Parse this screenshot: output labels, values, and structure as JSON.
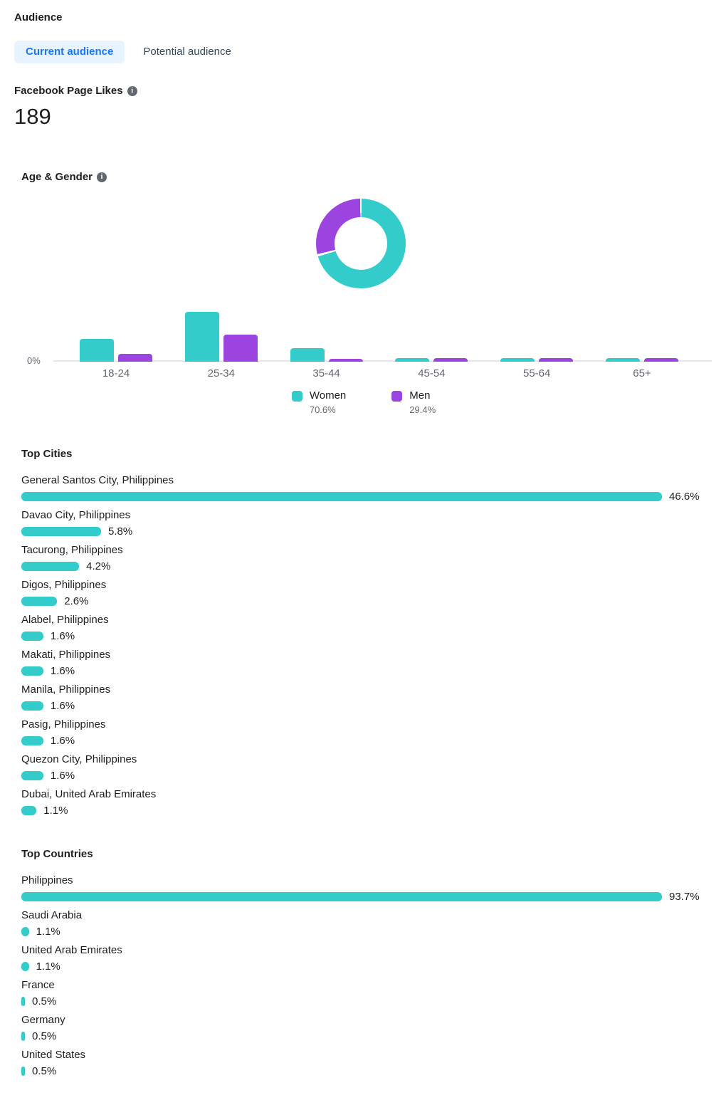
{
  "header": {
    "title": "Audience"
  },
  "tabs": [
    {
      "label": "Current audience",
      "active": true
    },
    {
      "label": "Potential audience",
      "active": false
    }
  ],
  "metric": {
    "label": "Facebook Page Likes",
    "value": "189",
    "info_icon": "info-icon"
  },
  "colors": {
    "women_teal": "#33cccb",
    "men_purple": "#9b44df",
    "tab_active_text": "#1877f2",
    "tab_active_bg": "#e7f3ff",
    "axis_line": "#e4e6eb",
    "text_primary": "#1c1e21",
    "text_secondary": "#606770"
  },
  "age_gender": {
    "title": "Age & Gender",
    "axis_zero_label": "0%",
    "legend": {
      "women": {
        "label": "Women",
        "pct": "70.6%"
      },
      "men": {
        "label": "Men",
        "pct": "29.4%"
      }
    }
  },
  "top_cities": {
    "title": "Top Cities",
    "items": [
      {
        "label": "General Santos City, Philippines",
        "value": 46.6,
        "pct": "46.6%"
      },
      {
        "label": "Davao City, Philippines",
        "value": 5.8,
        "pct": "5.8%"
      },
      {
        "label": "Tacurong, Philippines",
        "value": 4.2,
        "pct": "4.2%"
      },
      {
        "label": "Digos, Philippines",
        "value": 2.6,
        "pct": "2.6%"
      },
      {
        "label": "Alabel, Philippines",
        "value": 1.6,
        "pct": "1.6%"
      },
      {
        "label": "Makati, Philippines",
        "value": 1.6,
        "pct": "1.6%"
      },
      {
        "label": "Manila, Philippines",
        "value": 1.6,
        "pct": "1.6%"
      },
      {
        "label": "Pasig, Philippines",
        "value": 1.6,
        "pct": "1.6%"
      },
      {
        "label": "Quezon City, Philippines",
        "value": 1.6,
        "pct": "1.6%"
      },
      {
        "label": "Dubai, United Arab Emirates",
        "value": 1.1,
        "pct": "1.1%"
      }
    ]
  },
  "top_countries": {
    "title": "Top Countries",
    "items": [
      {
        "label": "Philippines",
        "value": 93.7,
        "pct": "93.7%"
      },
      {
        "label": "Saudi Arabia",
        "value": 1.1,
        "pct": "1.1%"
      },
      {
        "label": "United Arab Emirates",
        "value": 1.1,
        "pct": "1.1%"
      },
      {
        "label": "France",
        "value": 0.5,
        "pct": "0.5%"
      },
      {
        "label": "Germany",
        "value": 0.5,
        "pct": "0.5%"
      },
      {
        "label": "United States",
        "value": 0.5,
        "pct": "0.5%"
      }
    ]
  },
  "chart_data": [
    {
      "type": "pie",
      "subtype": "donut",
      "title": "Age & Gender — gender split",
      "labels": [
        "Women",
        "Men"
      ],
      "values": [
        70.6,
        29.4
      ],
      "colors": [
        "#33cccb",
        "#9b44df"
      ],
      "legend_position": "bottom"
    },
    {
      "type": "bar",
      "title": "Age & Gender — by age group",
      "categories": [
        "18-24",
        "25-34",
        "35-44",
        "45-54",
        "55-64",
        "65+"
      ],
      "series": [
        {
          "name": "Women",
          "color": "#33cccb",
          "values": [
            17,
            37,
            10,
            2.5,
            2.5,
            2.5
          ]
        },
        {
          "name": "Men",
          "color": "#9b44df",
          "values": [
            6,
            20,
            2,
            2.5,
            2.5,
            2.5
          ]
        }
      ],
      "values_are_estimates": true,
      "xlabel": "",
      "ylabel": "%",
      "ylim": [
        0,
        40
      ],
      "axis_labels_shown": [
        "0%"
      ],
      "grid": false
    },
    {
      "type": "bar",
      "orientation": "horizontal",
      "title": "Top Cities",
      "categories": [
        "General Santos City, Philippines",
        "Davao City, Philippines",
        "Tacurong, Philippines",
        "Digos, Philippines",
        "Alabel, Philippines",
        "Makati, Philippines",
        "Manila, Philippines",
        "Pasig, Philippines",
        "Quezon City, Philippines",
        "Dubai, United Arab Emirates"
      ],
      "values": [
        46.6,
        5.8,
        4.2,
        2.6,
        1.6,
        1.6,
        1.6,
        1.6,
        1.6,
        1.1
      ],
      "data_labels": [
        "46.6%",
        "5.8%",
        "4.2%",
        "2.6%",
        "1.6%",
        "1.6%",
        "1.6%",
        "1.6%",
        "1.6%",
        "1.1%"
      ],
      "color": "#33cccb"
    },
    {
      "type": "bar",
      "orientation": "horizontal",
      "title": "Top Countries",
      "categories": [
        "Philippines",
        "Saudi Arabia",
        "United Arab Emirates",
        "France",
        "Germany",
        "United States"
      ],
      "values": [
        93.7,
        1.1,
        1.1,
        0.5,
        0.5,
        0.5
      ],
      "data_labels": [
        "93.7%",
        "1.1%",
        "1.1%",
        "0.5%",
        "0.5%",
        "0.5%"
      ],
      "color": "#33cccb"
    }
  ]
}
